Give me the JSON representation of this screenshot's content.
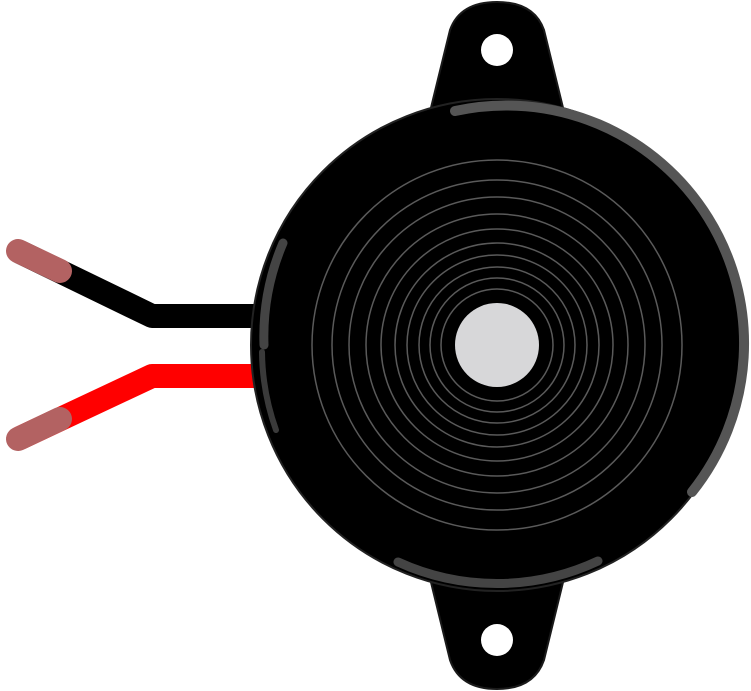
{
  "illustration": {
    "subject": "piezo-buzzer",
    "colors": {
      "background": "#ffffff",
      "body": "#000000",
      "body_outline": "#1a1a1a",
      "rim_highlight": "#555555",
      "rings": "#5a5a5a",
      "center_disc": "#d7d7d9",
      "mount_hole": "#ffffff",
      "wire_black": "#000000",
      "wire_red": "#ff0000",
      "wire_tip": "#b36262"
    },
    "wires": [
      {
        "name": "black-wire",
        "color": "#000000"
      },
      {
        "name": "red-wire",
        "color": "#ff0000"
      }
    ],
    "ring_count": 10
  }
}
